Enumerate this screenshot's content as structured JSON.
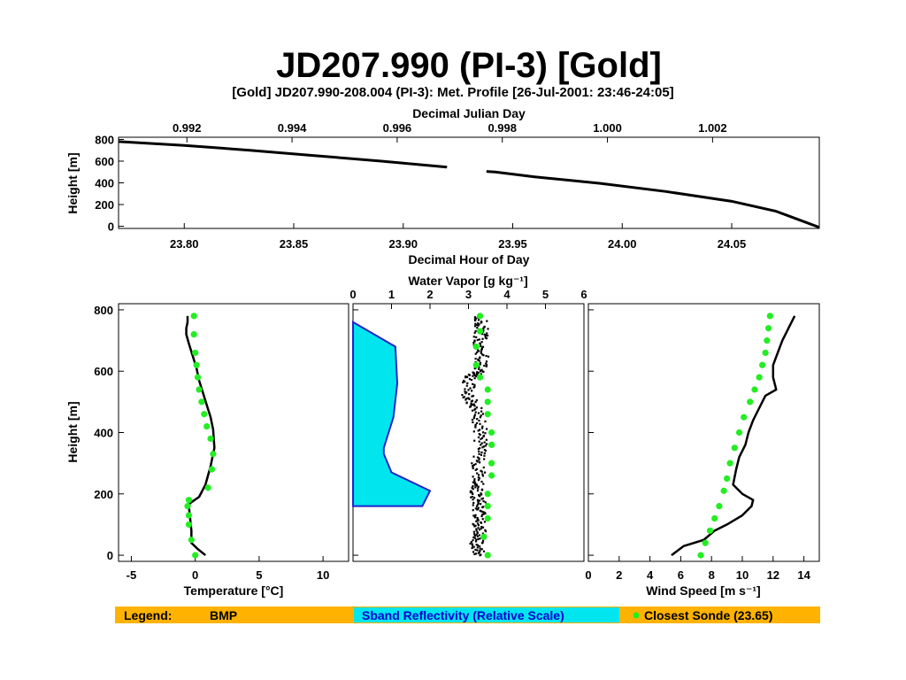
{
  "page_title": "JD207.990 (PI-3) [Gold]",
  "legend": {
    "color": "#ffb300",
    "label": "Legend:",
    "bmp": "BMP",
    "sband": "Sband Reflectivity (Relative Scale)",
    "sband_bg": "#00e5ee",
    "sband_text_color": "#0000cc",
    "sonde": "Closest Sonde (23.65)",
    "sonde_color": "#22ee22"
  },
  "chart_data": [
    {
      "type": "line",
      "title": "[Gold] JD207.990-208.004 (PI-3): Met. Profile [26-Jul-2001: 23:46-24:05]",
      "xlabel": "Decimal Hour of Day",
      "x2label": "Decimal Julian Day",
      "ylabel": "Height [m]",
      "xlim": [
        23.77,
        24.09
      ],
      "ylim": [
        -20,
        820
      ],
      "xticks": [
        23.8,
        23.85,
        23.9,
        23.95,
        24.0,
        24.05
      ],
      "xtick_labels": [
        "23.80",
        "23.85",
        "23.90",
        "23.95",
        "24.00",
        "24.05"
      ],
      "x2ticks": [
        0.992,
        0.994,
        0.996,
        0.998,
        1.0,
        1.002
      ],
      "x2tick_labels": [
        "0.992",
        "0.994",
        "0.996",
        "0.998",
        "1.000",
        "1.002"
      ],
      "yticks": [
        0,
        200,
        400,
        600,
        800
      ],
      "ytick_labels": [
        "0",
        "200",
        "400",
        "600",
        "800"
      ],
      "series": [
        {
          "color": "#000000",
          "x": [
            23.77,
            23.8,
            23.83,
            23.86,
            23.89,
            23.92,
            23.938,
            23.942,
            23.96,
            23.99,
            24.02,
            24.05,
            24.07,
            24.09
          ],
          "y": [
            780,
            745,
            700,
            650,
            600,
            545,
            505,
            500,
            455,
            395,
            320,
            230,
            140,
            -10
          ]
        }
      ],
      "gap": [
        23.937,
        23.942
      ]
    },
    {
      "type": "line",
      "xlabel": "Temperature [°C]",
      "ylabel": "Height [m]",
      "xlim": [
        -6,
        12
      ],
      "ylim": [
        -20,
        820
      ],
      "xticks": [
        -5,
        0,
        5,
        10
      ],
      "xtick_labels": [
        "-5",
        "0",
        "5",
        "10"
      ],
      "yticks": [
        0,
        200,
        400,
        600,
        800
      ],
      "ytick_labels": [
        "0",
        "200",
        "400",
        "600",
        "800"
      ],
      "bmp": {
        "x": [
          0.8,
          0.2,
          -0.3,
          -0.3,
          -0.4,
          -0.5,
          -0.4,
          0.3,
          0.8,
          1.2,
          1.5,
          1.4,
          1.2,
          0.9,
          0.6,
          0.3,
          0.1,
          -0.2,
          -0.5,
          -0.7,
          -0.7,
          -0.6,
          -0.6
        ],
        "y": [
          0,
          20,
          40,
          80,
          120,
          160,
          170,
          190,
          230,
          290,
          350,
          410,
          450,
          490,
          530,
          570,
          610,
          650,
          690,
          720,
          740,
          760,
          780
        ]
      },
      "sonde": {
        "x": [
          0,
          -0.3,
          -0.5,
          -0.5,
          -0.6,
          -0.5,
          1.0,
          1.3,
          1.4,
          1.2,
          0.9,
          0.7,
          0.5,
          0.3,
          0.2,
          0.1,
          0,
          -0.1,
          -0.1
        ],
        "y": [
          0,
          50,
          100,
          130,
          160,
          180,
          220,
          280,
          330,
          380,
          420,
          460,
          500,
          540,
          580,
          620,
          660,
          720,
          780
        ]
      }
    },
    {
      "type": "scatter",
      "xlabel": "Water Vapor [g kg⁻¹]",
      "xlim": [
        0,
        6
      ],
      "ylim": [
        -20,
        820
      ],
      "xticks": [
        0,
        1,
        2,
        3,
        4,
        5,
        6
      ],
      "xtick_labels": [
        "0",
        "1",
        "2",
        "3",
        "4",
        "5",
        "6"
      ],
      "reflectivity": {
        "x": [
          0,
          1.1,
          1.15,
          1.05,
          0.8,
          0.8,
          1.0,
          2.0,
          1.8,
          0
        ],
        "y": [
          760,
          680,
          560,
          450,
          350,
          330,
          270,
          210,
          160,
          160
        ]
      },
      "bmp": {
        "x": [
          3.3,
          3.2,
          3.3,
          3.25,
          3.3,
          3.2,
          3.3,
          3.25,
          3.3,
          3.3,
          3.2,
          3.0,
          3.0,
          3.3,
          3.35,
          3.3,
          3.35,
          3.3
        ],
        "y": [
          0,
          40,
          80,
          120,
          160,
          200,
          240,
          300,
          360,
          420,
          480,
          520,
          580,
          600,
          650,
          700,
          740,
          780
        ]
      },
      "sonde": {
        "x": [
          3.5,
          3.4,
          3.5,
          3.5,
          3.5,
          3.6,
          3.6,
          3.6,
          3.6,
          3.5,
          3.5,
          3.5,
          3.3,
          3.2,
          3.2,
          3.3,
          3.3
        ],
        "y": [
          0,
          60,
          120,
          160,
          200,
          260,
          300,
          360,
          400,
          460,
          500,
          540,
          580,
          620,
          680,
          730,
          780
        ]
      }
    },
    {
      "type": "line",
      "xlabel": "Wind Speed [m s⁻¹]",
      "xlim": [
        0,
        15
      ],
      "ylim": [
        -20,
        820
      ],
      "xticks": [
        0,
        2,
        4,
        6,
        8,
        10,
        12,
        14
      ],
      "xtick_labels": [
        "0",
        "2",
        "4",
        "6",
        "8",
        "10",
        "12",
        "14"
      ],
      "bmp": {
        "x": [
          5.4,
          6.2,
          7.5,
          8.2,
          9.0,
          10.0,
          10.6,
          10.7,
          10.0,
          9.4,
          9.6,
          9.8,
          10.2,
          10.4,
          10.7,
          11.0,
          11.5,
          12.2,
          12.0,
          12.0,
          12.3,
          12.6,
          13.0,
          13.4
        ],
        "y": [
          0,
          30,
          50,
          80,
          100,
          130,
          160,
          180,
          200,
          230,
          280,
          320,
          360,
          400,
          440,
          470,
          520,
          540,
          580,
          620,
          660,
          700,
          740,
          780
        ]
      },
      "sonde": {
        "x": [
          7.3,
          7.6,
          7.9,
          8.2,
          8.5,
          8.8,
          9.0,
          9.2,
          9.5,
          9.8,
          10.1,
          10.5,
          10.8,
          11.1,
          11.3,
          11.5,
          11.6,
          11.7,
          11.8
        ],
        "y": [
          0,
          40,
          80,
          120,
          160,
          210,
          250,
          300,
          350,
          400,
          450,
          500,
          540,
          580,
          620,
          660,
          700,
          740,
          780
        ]
      }
    }
  ]
}
